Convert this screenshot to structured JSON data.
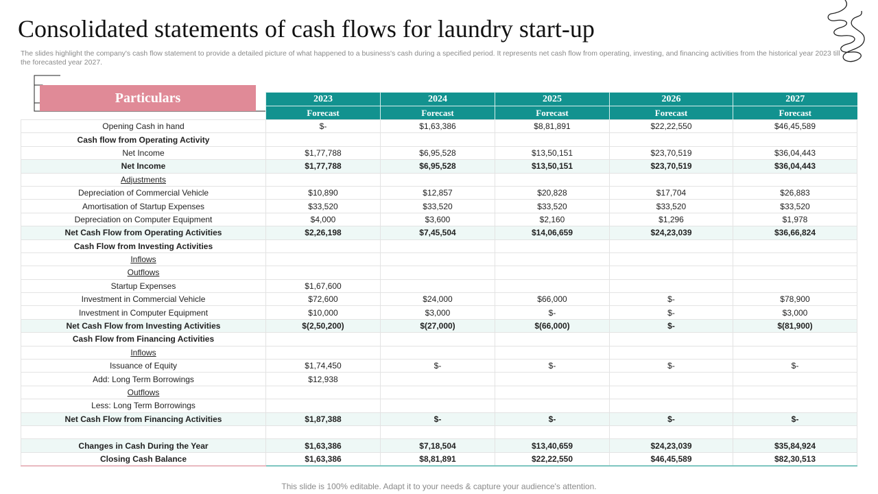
{
  "title": "Consolidated statements of cash flows for laundry start-up",
  "subtitle": "The slides highlight the company's cash flow statement to provide a detailed picture of what happened to a business's cash during a specified period. It represents net cash flow from operating, investing, and financing activities from the historical year 2023 till the forecasted year 2027.",
  "particulars_label": "Particulars",
  "years": [
    "2023",
    "2024",
    "2025",
    "2026",
    "2027"
  ],
  "forecast_labels": [
    "Forecast",
    "Forecast",
    "Forecast",
    "Forecast",
    "Forecast"
  ],
  "footer": "This slide is 100% editable. Adapt it to your needs & capture your audience's attention.",
  "colors": {
    "header_teal": "#12928f",
    "particulars_pink": "#e08a97",
    "highlight_row": "#eef8f6"
  },
  "rows": [
    {
      "label": "Opening Cash in hand",
      "values": [
        "$-",
        "$1,63,386",
        "$8,81,891",
        "$22,22,550",
        "$46,45,589"
      ]
    },
    {
      "label": "Cash flow from Operating Activity",
      "values": [
        "",
        "",
        "",
        "",
        ""
      ]
    },
    {
      "label": "Net Income",
      "values": [
        "$1,77,788",
        "$6,95,528",
        "$13,50,151",
        "$23,70,519",
        "$36,04,443"
      ]
    },
    {
      "label": "Net Income",
      "values": [
        "$1,77,788",
        "$6,95,528",
        "$13,50,151",
        "$23,70,519",
        "$36,04,443"
      ]
    },
    {
      "label": "Adjustments",
      "values": [
        "",
        "",
        "",
        "",
        ""
      ]
    },
    {
      "label": "Depreciation of Commercial Vehicle",
      "values": [
        "$10,890",
        "$12,857",
        "$20,828",
        "$17,704",
        "$26,883"
      ]
    },
    {
      "label": "Amortisation of Startup Expenses",
      "values": [
        "$33,520",
        "$33,520",
        "$33,520",
        "$33,520",
        "$33,520"
      ]
    },
    {
      "label": "Depreciation on Computer Equipment",
      "values": [
        "$4,000",
        "$3,600",
        "$2,160",
        "$1,296",
        "$1,978"
      ]
    },
    {
      "label": "Net Cash Flow from Operating Activities",
      "values": [
        "$2,26,198",
        "$7,45,504",
        "$14,06,659",
        "$24,23,039",
        "$36,66,824"
      ]
    },
    {
      "label": "Cash Flow from Investing Activities",
      "values": [
        "",
        "",
        "",
        "",
        ""
      ]
    },
    {
      "label": "Inflows",
      "values": [
        "",
        "",
        "",
        "",
        ""
      ]
    },
    {
      "label": "Outflows",
      "values": [
        "",
        "",
        "",
        "",
        ""
      ]
    },
    {
      "label": "Startup Expenses",
      "values": [
        "$1,67,600",
        "",
        "",
        "",
        ""
      ]
    },
    {
      "label": "Investment in Commercial Vehicle",
      "values": [
        "$72,600",
        "$24,000",
        "$66,000",
        "$-",
        "$78,900"
      ]
    },
    {
      "label": "Investment in Computer Equipment",
      "values": [
        "$10,000",
        "$3,000",
        "$-",
        "$-",
        "$3,000"
      ]
    },
    {
      "label": "Net Cash Flow from Investing Activities",
      "values": [
        "$(2,50,200)",
        "$(27,000)",
        "$(66,000)",
        "$-",
        "$(81,900)"
      ]
    },
    {
      "label": "Cash Flow from Financing Activities",
      "values": [
        "",
        "",
        "",
        "",
        ""
      ]
    },
    {
      "label": "Inflows",
      "values": [
        "",
        "",
        "",
        "",
        ""
      ]
    },
    {
      "label": "Issuance of Equity",
      "values": [
        "$1,74,450",
        "$-",
        "$-",
        "$-",
        "$-"
      ]
    },
    {
      "label": "Add: Long Term Borrowings",
      "values": [
        "$12,938",
        "",
        "",
        "",
        ""
      ]
    },
    {
      "label": "Outflows",
      "values": [
        "",
        "",
        "",
        "",
        ""
      ]
    },
    {
      "label": "Less: Long Term Borrowings",
      "values": [
        "",
        "",
        "",
        "",
        ""
      ]
    },
    {
      "label": "Net Cash Flow from Financing Activities",
      "values": [
        "$1,87,388",
        "$-",
        "$-",
        "$-",
        "$-"
      ]
    },
    {
      "label": "",
      "values": [
        "",
        "",
        "",
        "",
        ""
      ]
    },
    {
      "label": "Changes in Cash During the Year",
      "values": [
        "$1,63,386",
        "$7,18,504",
        "$13,40,659",
        "$24,23,039",
        "$35,84,924"
      ]
    },
    {
      "label": "Closing Cash Balance",
      "values": [
        "$1,63,386",
        "$8,81,891",
        "$22,22,550",
        "$46,45,589",
        "$82,30,513"
      ]
    }
  ]
}
